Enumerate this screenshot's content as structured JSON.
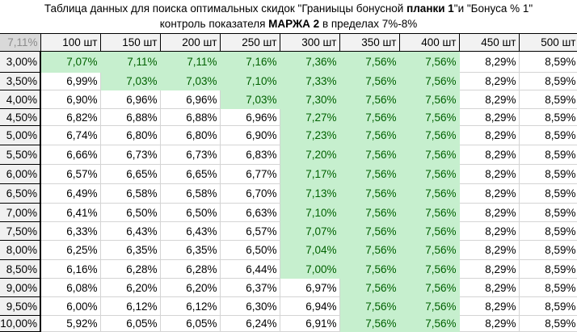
{
  "title": {
    "line1_pre": "Таблица данных для поиска оптимальных скидок \"Граниыцы бонусной ",
    "line1_bold": "планки 1",
    "line1_post": "\"и \"Бонуса % 1\"",
    "line2_pre": "контроль показателя ",
    "line2_bold": "МАРЖА 2",
    "line2_post": " в пределах 7%-8%"
  },
  "colors": {
    "highlight_fill": "#c6efce",
    "highlight_text": "#006100",
    "header_fill": "#f2f2f2",
    "corner_fill": "#d9d9d9"
  },
  "table": {
    "corner_value": "7,11%",
    "columns": [
      "100 шт",
      "150 шт",
      "200 шт",
      "250 шт",
      "300 шт",
      "350 шт",
      "400 шт",
      "450 шт",
      "500 шт"
    ],
    "rows": [
      {
        "label": "3,00%",
        "h": 26,
        "values": [
          "7,07%",
          "7,11%",
          "7,11%",
          "7,16%",
          "7,36%",
          "7,56%",
          "7,56%",
          "8,29%",
          "8,59%"
        ],
        "hl": [
          1,
          1,
          1,
          1,
          1,
          1,
          1,
          0,
          0
        ]
      },
      {
        "label": "3,50%",
        "h": 22,
        "values": [
          "6,99%",
          "7,03%",
          "7,03%",
          "7,10%",
          "7,33%",
          "7,56%",
          "7,56%",
          "8,29%",
          "8,59%"
        ],
        "hl": [
          0,
          1,
          1,
          1,
          1,
          1,
          1,
          0,
          0
        ]
      },
      {
        "label": "4,00%",
        "h": 23,
        "values": [
          "6,90%",
          "6,96%",
          "6,96%",
          "7,03%",
          "7,30%",
          "7,56%",
          "7,56%",
          "8,29%",
          "8,59%"
        ],
        "hl": [
          0,
          0,
          0,
          1,
          1,
          1,
          1,
          0,
          0
        ]
      },
      {
        "label": "4,50%",
        "h": 21,
        "values": [
          "6,82%",
          "6,88%",
          "6,88%",
          "6,96%",
          "7,27%",
          "7,56%",
          "7,56%",
          "8,29%",
          "8,59%"
        ],
        "hl": [
          0,
          0,
          0,
          0,
          1,
          1,
          1,
          0,
          0
        ]
      },
      {
        "label": "5,00%",
        "h": 24,
        "values": [
          "6,74%",
          "6,80%",
          "6,80%",
          "6,90%",
          "7,23%",
          "7,56%",
          "7,56%",
          "8,29%",
          "8,59%"
        ],
        "hl": [
          0,
          0,
          0,
          0,
          1,
          1,
          1,
          0,
          0
        ]
      },
      {
        "label": "5,50%",
        "h": 24,
        "values": [
          "6,66%",
          "6,73%",
          "6,73%",
          "6,83%",
          "7,20%",
          "7,56%",
          "7,56%",
          "8,29%",
          "8,59%"
        ],
        "hl": [
          0,
          0,
          0,
          0,
          1,
          1,
          1,
          0,
          0
        ]
      },
      {
        "label": "6,00%",
        "h": 24,
        "values": [
          "6,57%",
          "6,65%",
          "6,65%",
          "6,77%",
          "7,17%",
          "7,56%",
          "7,56%",
          "8,29%",
          "8,59%"
        ],
        "hl": [
          0,
          0,
          0,
          0,
          1,
          1,
          1,
          0,
          0
        ]
      },
      {
        "label": "6,50%",
        "h": 24,
        "values": [
          "6,49%",
          "6,58%",
          "6,58%",
          "6,70%",
          "7,13%",
          "7,56%",
          "7,56%",
          "8,29%",
          "8,59%"
        ],
        "hl": [
          0,
          0,
          0,
          0,
          1,
          1,
          1,
          0,
          0
        ]
      },
      {
        "label": "7,00%",
        "h": 23,
        "values": [
          "6,41%",
          "6,50%",
          "6,50%",
          "6,63%",
          "7,10%",
          "7,56%",
          "7,56%",
          "8,29%",
          "8,59%"
        ],
        "hl": [
          0,
          0,
          0,
          0,
          1,
          1,
          1,
          0,
          0
        ]
      },
      {
        "label": "7,50%",
        "h": 23,
        "values": [
          "6,33%",
          "6,43%",
          "6,43%",
          "6,57%",
          "7,07%",
          "7,56%",
          "7,56%",
          "8,29%",
          "8,59%"
        ],
        "hl": [
          0,
          0,
          0,
          0,
          1,
          1,
          1,
          0,
          0
        ]
      },
      {
        "label": "8,00%",
        "h": 24,
        "values": [
          "6,25%",
          "6,35%",
          "6,35%",
          "6,50%",
          "7,04%",
          "7,56%",
          "7,56%",
          "8,29%",
          "8,59%"
        ],
        "hl": [
          0,
          0,
          0,
          0,
          1,
          1,
          1,
          0,
          0
        ]
      },
      {
        "label": "8,50%",
        "h": 23,
        "values": [
          "6,16%",
          "6,28%",
          "6,28%",
          "6,44%",
          "7,00%",
          "7,56%",
          "7,56%",
          "8,29%",
          "8,59%"
        ],
        "hl": [
          0,
          0,
          0,
          0,
          1,
          1,
          1,
          0,
          0
        ]
      },
      {
        "label": "9,00%",
        "h": 23,
        "values": [
          "6,08%",
          "6,20%",
          "6,20%",
          "6,37%",
          "6,97%",
          "7,56%",
          "7,56%",
          "8,29%",
          "8,59%"
        ],
        "hl": [
          0,
          0,
          0,
          0,
          0,
          1,
          1,
          0,
          0
        ]
      },
      {
        "label": "9,50%",
        "h": 23,
        "values": [
          "6,00%",
          "6,12%",
          "6,12%",
          "6,30%",
          "6,94%",
          "7,56%",
          "7,56%",
          "8,29%",
          "8,59%"
        ],
        "hl": [
          0,
          0,
          0,
          0,
          0,
          1,
          1,
          0,
          0
        ]
      },
      {
        "label": "10,00%",
        "h": 20,
        "values": [
          "5,92%",
          "6,05%",
          "6,05%",
          "6,24%",
          "6,91%",
          "7,56%",
          "7,56%",
          "8,29%",
          "8,59%"
        ],
        "hl": [
          0,
          0,
          0,
          0,
          0,
          1,
          1,
          0,
          0
        ]
      }
    ]
  }
}
